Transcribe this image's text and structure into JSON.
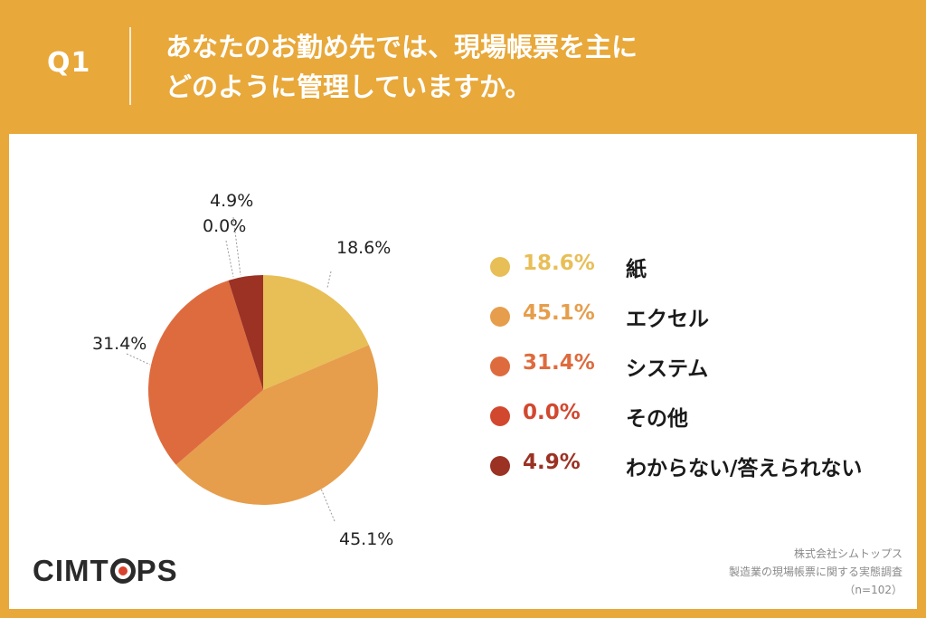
{
  "header": {
    "question_no": "Q1",
    "title_line1": "あなたのお勤め先では、現場帳票を主に",
    "title_line2": "どのように管理していますか。"
  },
  "chart_data": {
    "type": "pie",
    "categories": [
      "紙",
      "エクセル",
      "システム",
      "その他",
      "わからない/答えられない"
    ],
    "values": [
      18.6,
      45.1,
      31.4,
      0.0,
      4.9
    ],
    "value_labels": [
      "18.6%",
      "45.1%",
      "31.4%",
      "0.0%",
      "4.9%"
    ],
    "colors": [
      "#E8BE56",
      "#E69E4C",
      "#DE6B3E",
      "#D2482F",
      "#9B3224"
    ],
    "legend_position": "right",
    "start_angle": "top, clockwise"
  },
  "footer": {
    "logo_text_before": "CIMT",
    "logo_text_after": "PS",
    "source_company": "株式会社シムトップス",
    "source_survey": "製造業の現場帳票に関する実態調査",
    "sample_size": "（n=102）"
  }
}
